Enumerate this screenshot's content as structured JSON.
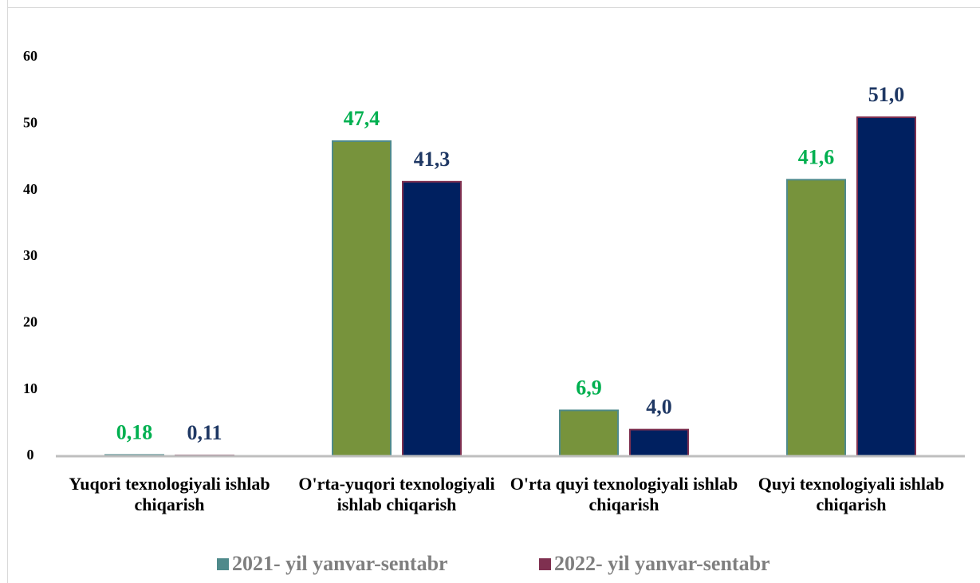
{
  "chart_data": {
    "type": "bar",
    "categories": [
      "Yuqori texnologiyali ishlab chiqarish",
      "O'rta-yuqori texnologiyali ishlab chiqarish",
      "O'rta quyi texnologiyali ishlab chiqarish",
      "Quyi texnologiyali ishlab chiqarish"
    ],
    "series": [
      {
        "name": "2021- yil yanvar-sentabr",
        "color": "#77933c",
        "edge_color": "#4f8a8b",
        "label_color": "#00b050",
        "values": [
          0.18,
          47.4,
          6.9,
          41.6
        ],
        "value_labels": [
          "0,18",
          "47,4",
          "6,9",
          "41,6"
        ]
      },
      {
        "name": "2022- yil yanvar-sentabr",
        "color": "#002060",
        "edge_color": "#7f3050",
        "label_color": "#1f3864",
        "values": [
          0.11,
          41.3,
          4.0,
          51.0
        ],
        "value_labels": [
          "0,11",
          "41,3",
          "4,0",
          "51,0"
        ]
      }
    ],
    "ylim": [
      0,
      60
    ],
    "yticks": [
      0,
      10,
      20,
      30,
      40,
      50,
      60
    ],
    "legend": "bottom"
  }
}
